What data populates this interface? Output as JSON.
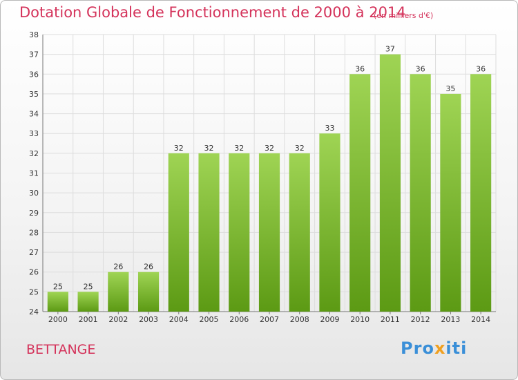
{
  "header": {
    "title": "Dotation Globale de Fonctionnement de 2000 à 2014",
    "unit": "(en milliers d'€)"
  },
  "footer": {
    "commune": "BETTANGE",
    "logo_letters": [
      "P",
      "r",
      "o",
      "x",
      "i",
      "t",
      "i"
    ]
  },
  "colors": {
    "accent": "#d4325a",
    "bar_top": "#9fd454",
    "bar_bottom": "#5c9a14",
    "grid": "#dddddd",
    "logo": [
      "#3a8fd8",
      "#3a8fd8",
      "#3a8fd8",
      "#f0a020",
      "#3a8fd8",
      "#3a8fd8",
      "#3a8fd8"
    ]
  },
  "chart_data": {
    "type": "bar",
    "title": "Dotation Globale de Fonctionnement de 2000 à 2014",
    "subtitle": "(en milliers d'€)",
    "xlabel": "",
    "ylabel": "",
    "categories": [
      "2000",
      "2001",
      "2002",
      "2003",
      "2004",
      "2005",
      "2006",
      "2007",
      "2008",
      "2009",
      "2010",
      "2011",
      "2012",
      "2013",
      "2014"
    ],
    "values": [
      25,
      25,
      26,
      26,
      32,
      32,
      32,
      32,
      32,
      33,
      36,
      37,
      36,
      35,
      36
    ],
    "ylim": [
      24,
      38
    ],
    "yticks": [
      24,
      25,
      26,
      27,
      28,
      29,
      30,
      31,
      32,
      33,
      34,
      35,
      36,
      37,
      38
    ],
    "grid": true,
    "legend": "none"
  }
}
